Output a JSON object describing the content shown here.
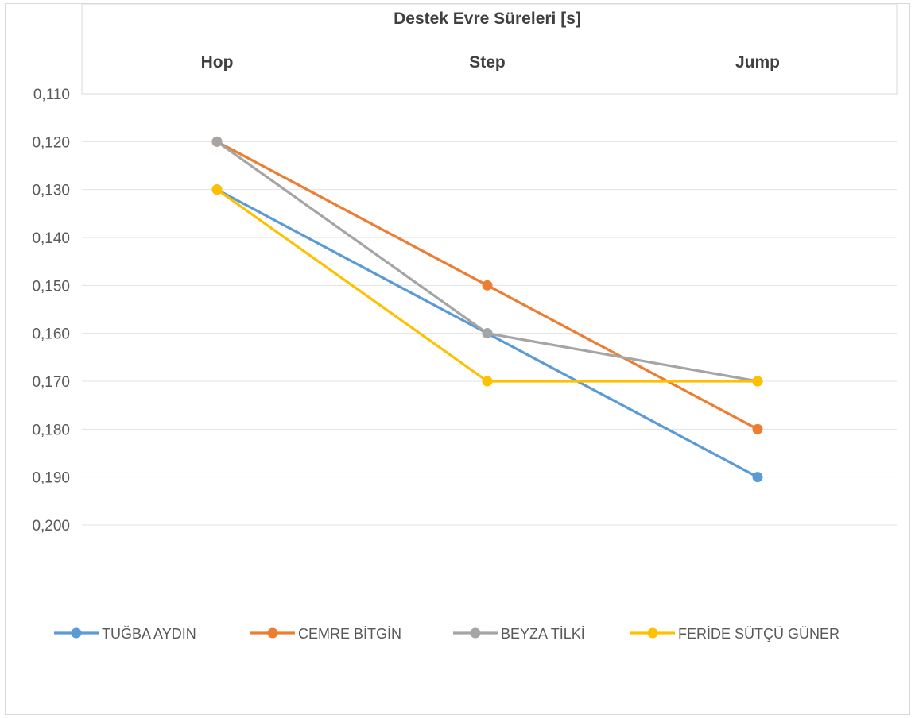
{
  "chart_data": {
    "type": "line",
    "title": "Destek Evre Süreleri  [s]",
    "categories": [
      "Hop",
      "Step",
      "Jump"
    ],
    "y_axis": {
      "reversed": true,
      "ylim": [
        0.11,
        0.2
      ],
      "ticks": [
        "0,110",
        "0,120",
        "0,130",
        "0,140",
        "0,150",
        "0,160",
        "0,170",
        "0,180",
        "0,190",
        "0,200"
      ],
      "tick_values": [
        0.11,
        0.12,
        0.13,
        0.14,
        0.15,
        0.16,
        0.17,
        0.18,
        0.19,
        0.2
      ]
    },
    "grid": true,
    "legend_position": "bottom",
    "series": [
      {
        "name": "TUĞBA AYDIN",
        "color": "#5b9bd5",
        "values": [
          0.13,
          0.16,
          0.19
        ]
      },
      {
        "name": "CEMRE BİTGİN",
        "color": "#ed7d31",
        "values": [
          0.12,
          0.15,
          0.18
        ]
      },
      {
        "name": "BEYZA TİLKİ",
        "color": "#a5a5a5",
        "values": [
          0.12,
          0.16,
          0.17
        ]
      },
      {
        "name": "FERİDE SÜTÇÜ GÜNER",
        "color": "#ffc000",
        "values": [
          0.13,
          0.17,
          0.17
        ]
      }
    ]
  }
}
